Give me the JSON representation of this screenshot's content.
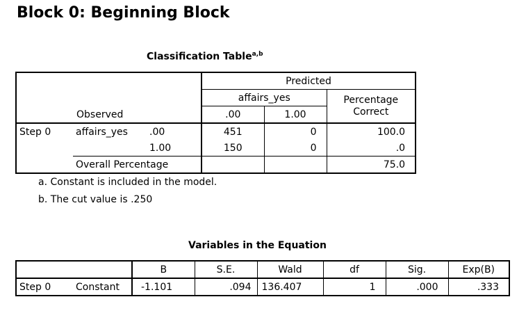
{
  "block_title": "Block 0: Beginning Block",
  "classification": {
    "caption": "Classification Table",
    "caption_sup": "a,b",
    "predicted": "Predicted",
    "group": "affairs_yes",
    "col_00": ".00",
    "col_100": "1.00",
    "pct_header_1": "Percentage",
    "pct_header_2": "Correct",
    "observed": "Observed",
    "step": "Step 0",
    "var": "affairs_yes",
    "row1": {
      "label": ".00",
      "v0": "451",
      "v1": "0",
      "pct": "100.0"
    },
    "row2": {
      "label": "1.00",
      "v0": "150",
      "v1": "0",
      "pct": ".0"
    },
    "overall": {
      "label": "Overall Percentage",
      "pct": "75.0"
    }
  },
  "footnotes": {
    "a": "a. Constant is included in the model.",
    "b": "b. The cut value is .250"
  },
  "variables": {
    "caption": "Variables in the Equation",
    "headers": {
      "b": "B",
      "se": "S.E.",
      "wald": "Wald",
      "df": "df",
      "sig": "Sig.",
      "expb": "Exp(B)"
    },
    "row": {
      "step": "Step 0",
      "term": "Constant",
      "b": "-1.101",
      "se": ".094",
      "wald": "136.407",
      "df": "1",
      "sig": ".000",
      "expb": ".333"
    }
  }
}
